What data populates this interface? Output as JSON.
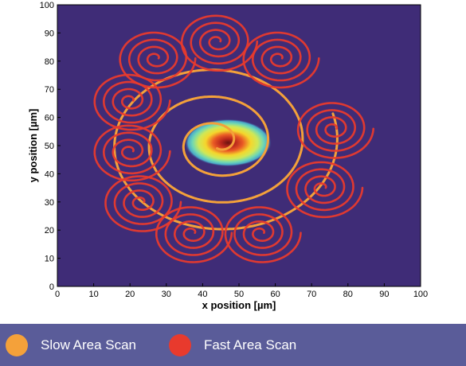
{
  "chart_data": {
    "type": "line",
    "title": "",
    "xlabel": "x position [µm]",
    "ylabel": "y position [µm]",
    "xlim": [
      0,
      100
    ],
    "ylim": [
      0,
      100
    ],
    "xticks": [
      0,
      10,
      20,
      30,
      40,
      50,
      60,
      70,
      80,
      90,
      100
    ],
    "yticks": [
      0,
      10,
      20,
      30,
      40,
      50,
      60,
      70,
      80,
      90,
      100
    ],
    "grid": false,
    "plot_background": "#3f2c77",
    "beam_spot": {
      "center": [
        47,
        51
      ],
      "radius_x": 12,
      "radius_y": 8.5
    },
    "series": [
      {
        "name": "Slow Area Scan",
        "color": "#f4a13a",
        "spiral": {
          "center": [
            44,
            51
          ],
          "start_radius": 2,
          "end_radius": 33.5,
          "turns": 3.3
        }
      },
      {
        "name": "Fast Area Scan",
        "color": "#e83a2d",
        "spiral_centers": [
          [
            76,
            56
          ],
          [
            73,
            35
          ],
          [
            56,
            19
          ],
          [
            37,
            19
          ],
          [
            23,
            30
          ],
          [
            20,
            48
          ],
          [
            20,
            66
          ],
          [
            27,
            81
          ],
          [
            44,
            87
          ],
          [
            61,
            81
          ]
        ],
        "spiral_radius": 11,
        "turns_per_spiral": 4
      }
    ]
  },
  "legend": {
    "position": "bottom",
    "items": [
      {
        "label": "Slow Area Scan",
        "color": "#f4a13a"
      },
      {
        "label": "Fast Area Scan",
        "color": "#e83a2d"
      }
    ]
  }
}
